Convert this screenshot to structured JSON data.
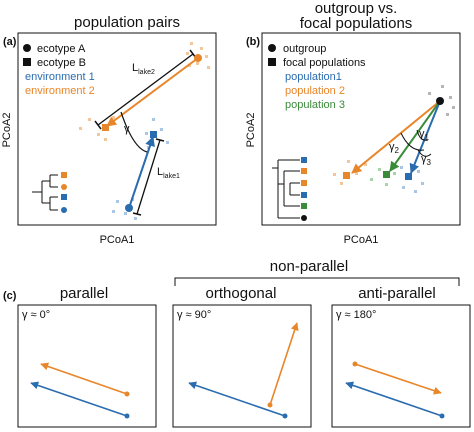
{
  "colors": {
    "blue": "#2a6cb0",
    "orange": "#e8862a",
    "green": "#3a8c3a",
    "light_blue": "#a9c6e4",
    "light_orange": "#f3c79b",
    "light_gray": "#b5b5b5",
    "black": "#111111"
  },
  "panel_a": {
    "label": "(a)",
    "title": "population pairs",
    "legend": [
      "ecotype A",
      "ecotype B",
      "environment 1",
      "environment 2"
    ],
    "axis_x": "PCoA1",
    "axis_y": "PCoA2",
    "gamma": "γ",
    "dist_2_main": "L",
    "dist_2_sub": "lake2",
    "dist_1_main": "L",
    "dist_1_sub": "lake1"
  },
  "panel_b": {
    "label": "(b)",
    "title_line1": "outgroup vs.",
    "title_line2": "focal populations",
    "legend": [
      "outgroup",
      "focal populations",
      "population1",
      "population 2",
      "population 3"
    ],
    "axis_x": "PCoA1",
    "axis_y": "PCoA2",
    "gamma_sym": "γ",
    "gamma_subs": [
      "1",
      "2",
      "3"
    ]
  },
  "panel_c": {
    "label": "(c)",
    "group_title": "non-parallel",
    "subpanels": [
      {
        "title": "parallel",
        "angle": "γ ≈ 0°"
      },
      {
        "title": "orthogonal",
        "angle": "γ ≈ 90°"
      },
      {
        "title": "anti-parallel",
        "angle": "γ ≈ 180°"
      }
    ]
  }
}
